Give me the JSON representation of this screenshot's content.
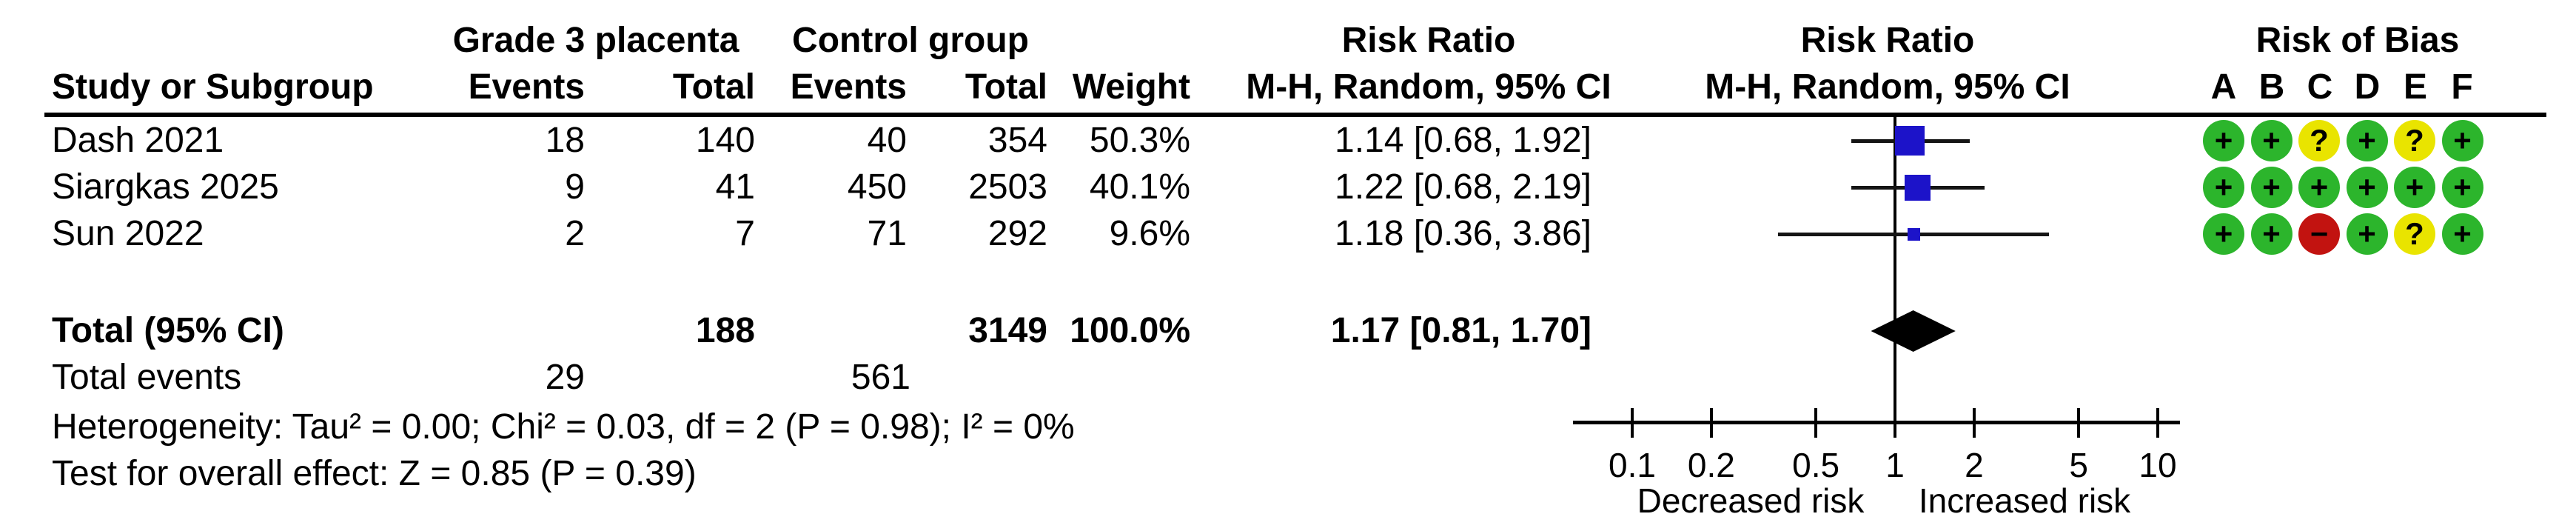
{
  "figure": {
    "group_headers": {
      "experimental": "Grade 3 placenta",
      "control": "Control group",
      "risk_ratio_values": "Risk Ratio",
      "risk_ratio_plot": "Risk Ratio",
      "risk_of_bias": "Risk of Bias"
    },
    "column_headers": {
      "study": "Study or Subgroup",
      "exp_events": "Events",
      "exp_total": "Total",
      "ctrl_events": "Events",
      "ctrl_total": "Total",
      "weight": "Weight",
      "ci_values": "M-H, Random, 95% CI",
      "ci_plot": "M-H, Random, 95% CI",
      "bias_letters": [
        "A",
        "B",
        "C",
        "D",
        "E",
        "F"
      ]
    },
    "rows": [
      {
        "study": "Dash 2021",
        "exp_events": "18",
        "exp_total": "140",
        "ctrl_events": "40",
        "ctrl_total": "354",
        "weight": "50.3%",
        "rr_text": "1.14 [0.68, 1.92]"
      },
      {
        "study": "Siargkas 2025",
        "exp_events": "9",
        "exp_total": "41",
        "ctrl_events": "450",
        "ctrl_total": "2503",
        "weight": "40.1%",
        "rr_text": "1.22 [0.68, 2.19]"
      },
      {
        "study": "Sun 2022",
        "exp_events": "2",
        "exp_total": "7",
        "ctrl_events": "71",
        "ctrl_total": "292",
        "weight": "9.6%",
        "rr_text": "1.18 [0.36, 3.86]"
      }
    ],
    "total_row": {
      "label": "Total (95% CI)",
      "exp_total": "188",
      "ctrl_total": "3149",
      "weight": "100.0%",
      "rr_text": "1.17 [0.81, 1.70]"
    },
    "total_events_row": {
      "label": "Total events",
      "exp_events": "29",
      "ctrl_events": "561"
    },
    "heterogeneity_line": "Heterogeneity: Tau² = 0.00; Chi² = 0.03, df = 2 (P = 0.98); I² = 0%",
    "overall_effect_line": "Test for overall effect: Z = 0.85 (P = 0.39)"
  },
  "chart_data": {
    "type": "forest",
    "x_scale": "log10",
    "xlim": [
      0.1,
      10
    ],
    "null_line": 1,
    "axis_ticks": [
      0.1,
      0.2,
      0.5,
      1,
      2,
      5,
      10
    ],
    "axis_tick_labels": [
      "0.1",
      "0.2",
      "0.5",
      "1",
      "2",
      "5",
      "10"
    ],
    "effect_measure": "Risk Ratio, M-H, Random, 95% CI",
    "studies": [
      {
        "name": "Dash 2021",
        "rr": 1.14,
        "ci_low": 0.68,
        "ci_high": 1.92,
        "weight_pct": 50.3
      },
      {
        "name": "Siargkas 2025",
        "rr": 1.22,
        "ci_low": 0.68,
        "ci_high": 2.19,
        "weight_pct": 40.1
      },
      {
        "name": "Sun 2022",
        "rr": 1.18,
        "ci_low": 0.36,
        "ci_high": 3.86,
        "weight_pct": 9.6
      }
    ],
    "overall": {
      "rr": 1.17,
      "ci_low": 0.81,
      "ci_high": 1.7,
      "weight_pct": 100.0
    },
    "axis_left_label": "Decreased risk",
    "axis_right_label": "Increased risk",
    "marker_color": "#1C13C9",
    "diamond_color": "#000000"
  },
  "risk_of_bias": {
    "colors": {
      "plus": "#2CB52C",
      "question": "#E9E400",
      "minus": "#C21310"
    },
    "symbols": {
      "plus": "+",
      "question": "?",
      "minus": "−"
    },
    "rows": [
      [
        "+",
        "+",
        "?",
        "+",
        "?",
        "+"
      ],
      [
        "+",
        "+",
        "+",
        "+",
        "+",
        "+"
      ],
      [
        "+",
        "+",
        "-",
        "+",
        "?",
        "+"
      ]
    ]
  }
}
